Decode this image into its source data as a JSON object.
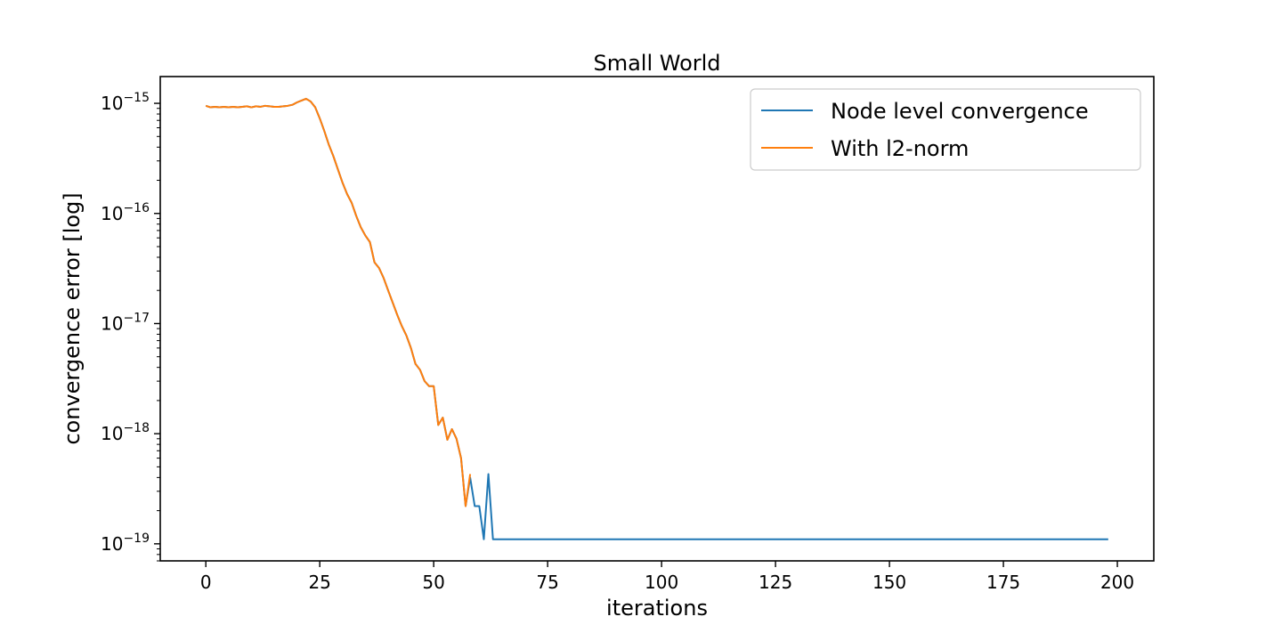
{
  "chart_data": {
    "type": "line",
    "title": "Small World",
    "xlabel": "iterations",
    "ylabel": "convergence error [log]",
    "xlim": [
      -10,
      208
    ],
    "ylim": [
      7e-20,
      1.75e-15
    ],
    "yscale": "log",
    "grid": false,
    "legend_position": "top-right",
    "xticks": [
      0,
      25,
      50,
      75,
      100,
      125,
      150,
      175,
      200
    ],
    "yticks": [
      {
        "value": 1e-19,
        "base": "10",
        "exp": "−19"
      },
      {
        "value": 1e-18,
        "base": "10",
        "exp": "−18"
      },
      {
        "value": 1e-17,
        "base": "10",
        "exp": "−17"
      },
      {
        "value": 1e-16,
        "base": "10",
        "exp": "−16"
      },
      {
        "value": 1e-15,
        "base": "10",
        "exp": "−15"
      }
    ],
    "series": [
      {
        "name": "Node level convergence",
        "color": "#1f77b4",
        "points": [
          [
            0,
            9.5e-16
          ],
          [
            1,
            9.2e-16
          ],
          [
            2,
            9.3e-16
          ],
          [
            3,
            9.2e-16
          ],
          [
            4,
            9.3e-16
          ],
          [
            5,
            9.2e-16
          ],
          [
            6,
            9.3e-16
          ],
          [
            7,
            9.2e-16
          ],
          [
            8,
            9.3e-16
          ],
          [
            9,
            9.4e-16
          ],
          [
            10,
            9.2e-16
          ],
          [
            11,
            9.4e-16
          ],
          [
            12,
            9.3e-16
          ],
          [
            13,
            9.5e-16
          ],
          [
            14,
            9.4e-16
          ],
          [
            15,
            9.3e-16
          ],
          [
            16,
            9.3e-16
          ],
          [
            17,
            9.4e-16
          ],
          [
            18,
            9.5e-16
          ],
          [
            19,
            9.7e-16
          ],
          [
            20,
            1.02e-15
          ],
          [
            21,
            1.06e-15
          ],
          [
            22,
            1.1e-15
          ],
          [
            23,
            1.04e-15
          ],
          [
            24,
            9.2e-16
          ],
          [
            25,
            7.3e-16
          ],
          [
            26,
            5.6e-16
          ],
          [
            27,
            4.2e-16
          ],
          [
            28,
            3.3e-16
          ],
          [
            29,
            2.5e-16
          ],
          [
            30,
            1.9e-16
          ],
          [
            31,
            1.5e-16
          ],
          [
            32,
            1.25e-16
          ],
          [
            33,
            9.5e-17
          ],
          [
            34,
            7.5e-17
          ],
          [
            35,
            6.3e-17
          ],
          [
            36,
            5.5e-17
          ],
          [
            37,
            3.6e-17
          ],
          [
            38,
            3.2e-17
          ],
          [
            39,
            2.6e-17
          ],
          [
            40,
            2e-17
          ],
          [
            41,
            1.55e-17
          ],
          [
            42,
            1.2e-17
          ],
          [
            43,
            9.5e-18
          ],
          [
            44,
            7.8e-18
          ],
          [
            45,
            6e-18
          ],
          [
            46,
            4.3e-18
          ],
          [
            47,
            3.8e-18
          ],
          [
            48,
            3e-18
          ],
          [
            49,
            2.7e-18
          ],
          [
            50,
            2.7e-18
          ],
          [
            51,
            1.2e-18
          ],
          [
            52,
            1.4e-18
          ],
          [
            53,
            8.8e-19
          ],
          [
            54,
            1.1e-18
          ],
          [
            55,
            9e-19
          ],
          [
            56,
            6e-19
          ],
          [
            57,
            2.2e-19
          ],
          [
            58,
            4e-19
          ],
          [
            59,
            2.2e-19
          ],
          [
            60,
            2.2e-19
          ],
          [
            61,
            1.1e-19
          ],
          [
            62,
            4.3e-19
          ],
          [
            63,
            1.1e-19
          ],
          [
            64,
            1.1e-19
          ],
          [
            70,
            1.1e-19
          ],
          [
            80,
            1.1e-19
          ],
          [
            90,
            1.1e-19
          ],
          [
            100,
            1.1e-19
          ],
          [
            110,
            1.1e-19
          ],
          [
            120,
            1.1e-19
          ],
          [
            130,
            1.1e-19
          ],
          [
            140,
            1.1e-19
          ],
          [
            150,
            1.1e-19
          ],
          [
            160,
            1.1e-19
          ],
          [
            170,
            1.1e-19
          ],
          [
            180,
            1.1e-19
          ],
          [
            190,
            1.1e-19
          ],
          [
            198,
            1.1e-19
          ]
        ]
      },
      {
        "name": "With l2-norm",
        "color": "#ff7f0e",
        "points": [
          [
            0,
            9.5e-16
          ],
          [
            1,
            9.2e-16
          ],
          [
            2,
            9.3e-16
          ],
          [
            3,
            9.2e-16
          ],
          [
            4,
            9.3e-16
          ],
          [
            5,
            9.2e-16
          ],
          [
            6,
            9.3e-16
          ],
          [
            7,
            9.2e-16
          ],
          [
            8,
            9.3e-16
          ],
          [
            9,
            9.4e-16
          ],
          [
            10,
            9.2e-16
          ],
          [
            11,
            9.4e-16
          ],
          [
            12,
            9.3e-16
          ],
          [
            13,
            9.5e-16
          ],
          [
            14,
            9.4e-16
          ],
          [
            15,
            9.3e-16
          ],
          [
            16,
            9.3e-16
          ],
          [
            17,
            9.4e-16
          ],
          [
            18,
            9.5e-16
          ],
          [
            19,
            9.7e-16
          ],
          [
            20,
            1.02e-15
          ],
          [
            21,
            1.06e-15
          ],
          [
            22,
            1.1e-15
          ],
          [
            23,
            1.04e-15
          ],
          [
            24,
            9.2e-16
          ],
          [
            25,
            7.3e-16
          ],
          [
            26,
            5.6e-16
          ],
          [
            27,
            4.2e-16
          ],
          [
            28,
            3.3e-16
          ],
          [
            29,
            2.5e-16
          ],
          [
            30,
            1.9e-16
          ],
          [
            31,
            1.5e-16
          ],
          [
            32,
            1.25e-16
          ],
          [
            33,
            9.5e-17
          ],
          [
            34,
            7.5e-17
          ],
          [
            35,
            6.3e-17
          ],
          [
            36,
            5.5e-17
          ],
          [
            37,
            3.6e-17
          ],
          [
            38,
            3.2e-17
          ],
          [
            39,
            2.6e-17
          ],
          [
            40,
            2e-17
          ],
          [
            41,
            1.55e-17
          ],
          [
            42,
            1.2e-17
          ],
          [
            43,
            9.5e-18
          ],
          [
            44,
            7.8e-18
          ],
          [
            45,
            6e-18
          ],
          [
            46,
            4.3e-18
          ],
          [
            47,
            3.8e-18
          ],
          [
            48,
            3e-18
          ],
          [
            49,
            2.7e-18
          ],
          [
            50,
            2.7e-18
          ],
          [
            51,
            1.2e-18
          ],
          [
            52,
            1.4e-18
          ],
          [
            53,
            8.8e-19
          ],
          [
            54,
            1.1e-18
          ],
          [
            55,
            9e-19
          ],
          [
            56,
            6e-19
          ],
          [
            57,
            2.2e-19
          ],
          [
            58,
            4.3e-19
          ]
        ]
      }
    ]
  }
}
